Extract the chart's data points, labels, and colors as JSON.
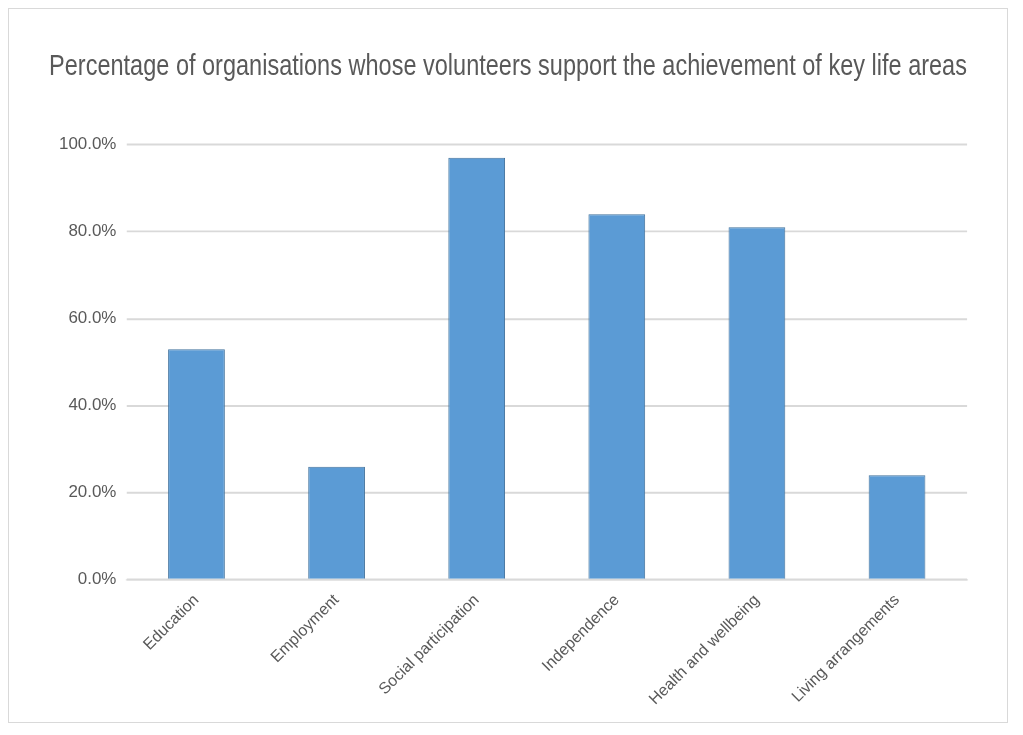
{
  "chart_data": {
    "type": "bar",
    "title": "Percentage of organisations whose volunteers support the achievement of key life areas",
    "categories": [
      "Education",
      "Employment",
      "Social participation",
      "Independence",
      "Health and wellbeing",
      "Living arrangements"
    ],
    "values": [
      53,
      26,
      97,
      84,
      81,
      24
    ],
    "color": "#5b9bd5",
    "ylim": [
      0,
      100
    ],
    "yticks": [
      {
        "value": 0,
        "label": "0.0%"
      },
      {
        "value": 20,
        "label": "20.0%"
      },
      {
        "value": 40,
        "label": "40.0%"
      },
      {
        "value": 60,
        "label": "60.0%"
      },
      {
        "value": 80,
        "label": "80.0%"
      },
      {
        "value": 100,
        "label": "100.0%"
      }
    ],
    "grid": "y",
    "legend": false
  }
}
